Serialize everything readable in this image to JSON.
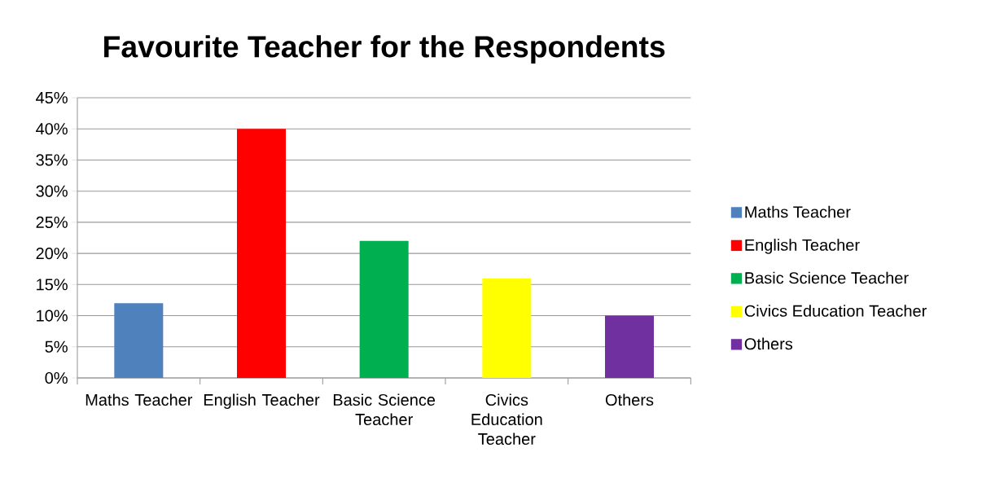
{
  "chart_data": {
    "type": "bar",
    "title": "Favourite Teacher for the Respondents",
    "categories": [
      "Maths Teacher",
      "English Teacher",
      "Basic Science Teacher",
      "Civics Education Teacher",
      "Others"
    ],
    "series": [
      {
        "name": "Maths Teacher",
        "color": "#4f81bd",
        "values": [
          12,
          null,
          null,
          null,
          null
        ]
      },
      {
        "name": "English Teacher",
        "color": "#ff0000",
        "values": [
          null,
          40,
          null,
          null,
          null
        ]
      },
      {
        "name": "Basic Science Teacher",
        "color": "#00b050",
        "values": [
          null,
          null,
          22,
          null,
          null
        ]
      },
      {
        "name": "Civics Education Teacher",
        "color": "#ffff00",
        "values": [
          null,
          null,
          null,
          16,
          null
        ]
      },
      {
        "name": "Others",
        "color": "#7030a0",
        "values": [
          null,
          null,
          null,
          null,
          10
        ]
      }
    ],
    "ylim": [
      0,
      45
    ],
    "yticks": [
      {
        "value": 0,
        "label": "0%"
      },
      {
        "value": 5,
        "label": "5%"
      },
      {
        "value": 10,
        "label": "10%"
      },
      {
        "value": 15,
        "label": "15%"
      },
      {
        "value": 20,
        "label": "20%"
      },
      {
        "value": 25,
        "label": "25%"
      },
      {
        "value": 30,
        "label": "30%"
      },
      {
        "value": 35,
        "label": "35%"
      },
      {
        "value": 40,
        "label": "40%"
      },
      {
        "value": 45,
        "label": "45%"
      }
    ],
    "grid": "y",
    "legend": "right"
  }
}
